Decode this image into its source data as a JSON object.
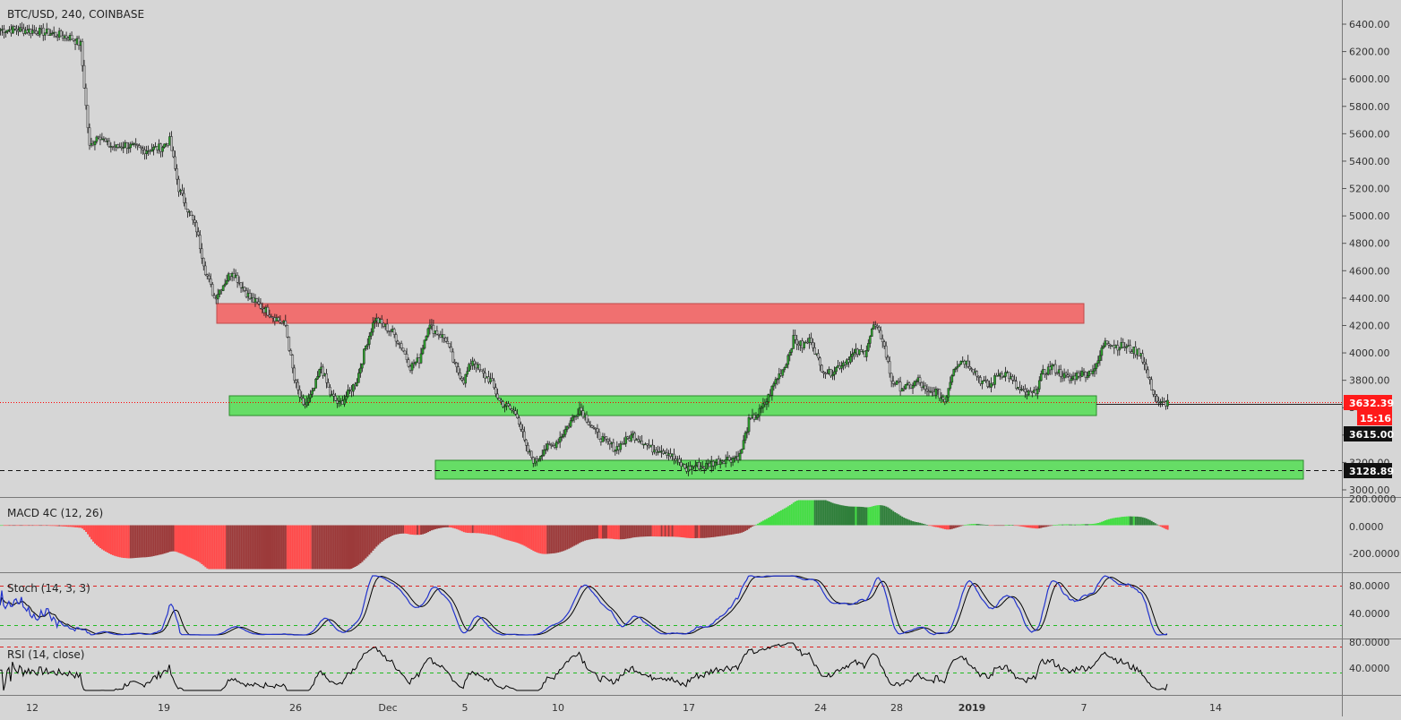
{
  "header": {
    "title": "BTC/USD, 240, COINBASE"
  },
  "colors": {
    "background": "#d6d6d6",
    "up_candle": "#2e9e2e",
    "down_candle": "#c0c0c0",
    "resistance_zone": "#f07070",
    "support_zone": "#66dd66",
    "current_price_line": "#ff0000",
    "macd_pos_strong": "#44dd44",
    "macd_pos_weak": "#2f7f3a",
    "macd_neg_strong": "#ff4a4a",
    "macd_neg_weak": "#9c3a3a",
    "stoch_k": "#2233cc",
    "stoch_d": "#000000",
    "rsi_line": "#000000",
    "level_upper": "#dd2222",
    "level_lower": "#22bb22"
  },
  "price_axis": {
    "ticks": [
      "6400.00",
      "6200.00",
      "6000.00",
      "5800.00",
      "5600.00",
      "5400.00",
      "5200.00",
      "5000.00",
      "4800.00",
      "4600.00",
      "4400.00",
      "4200.00",
      "4000.00",
      "3800.00",
      "3600.00",
      "3400.00",
      "3200.00",
      "3000.00"
    ],
    "current_price": "3632.39",
    "countdown": "15:16",
    "level_a": "3615.00",
    "level_b": "3128.89"
  },
  "time_axis": {
    "labels": [
      "12",
      "19",
      "26",
      "Dec",
      "5",
      "10",
      "17",
      "24",
      "28",
      "2019",
      "7",
      "14"
    ]
  },
  "macd": {
    "title": "MACD 4C (12, 26)",
    "ticks": [
      "200.0000",
      "0.0000",
      "-200.0000"
    ]
  },
  "stoch": {
    "title": "Stoch (14, 3, 3)",
    "ticks": [
      "80.0000",
      "40.0000"
    ]
  },
  "rsi": {
    "title": "RSI (14, close)",
    "ticks": [
      "80.0000",
      "40.0000"
    ]
  },
  "chart_data": {
    "type": "candlestick",
    "symbol": "BTC/USD",
    "interval": "240",
    "exchange": "COINBASE",
    "y_range": [
      2960,
      6460
    ],
    "dates": [
      "Nov 12",
      "Nov 19",
      "Nov 26",
      "Dec",
      "Dec 5",
      "Dec 10",
      "Dec 17",
      "Dec 24",
      "Dec 28",
      "2019",
      "Jan 7",
      "Jan 14"
    ],
    "close_path": [
      [
        0,
        6360
      ],
      [
        10,
        6360
      ],
      [
        20,
        6350
      ],
      [
        30,
        6330
      ],
      [
        40,
        6300
      ],
      [
        45,
        6250
      ],
      [
        50,
        5500
      ],
      [
        55,
        5600
      ],
      [
        60,
        5520
      ],
      [
        65,
        5500
      ],
      [
        70,
        5520
      ],
      [
        80,
        5480
      ],
      [
        90,
        5500
      ],
      [
        95,
        5550
      ],
      [
        100,
        5200
      ],
      [
        110,
        4900
      ],
      [
        115,
        4600
      ],
      [
        120,
        4400
      ],
      [
        125,
        4500
      ],
      [
        130,
        4600
      ],
      [
        140,
        4400
      ],
      [
        150,
        4300
      ],
      [
        160,
        4200
      ],
      [
        165,
        3800
      ],
      [
        170,
        3600
      ],
      [
        175,
        3700
      ],
      [
        180,
        3900
      ],
      [
        185,
        3700
      ],
      [
        190,
        3620
      ],
      [
        195,
        3700
      ],
      [
        200,
        3800
      ],
      [
        205,
        4050
      ],
      [
        210,
        4250
      ],
      [
        215,
        4200
      ],
      [
        220,
        4150
      ],
      [
        225,
        4050
      ],
      [
        230,
        3900
      ],
      [
        235,
        3950
      ],
      [
        240,
        4200
      ],
      [
        245,
        4150
      ],
      [
        250,
        4100
      ],
      [
        255,
        3900
      ],
      [
        260,
        3800
      ],
      [
        265,
        3950
      ],
      [
        270,
        3850
      ],
      [
        275,
        3800
      ],
      [
        280,
        3650
      ],
      [
        285,
        3600
      ],
      [
        290,
        3550
      ],
      [
        295,
        3300
      ],
      [
        300,
        3200
      ],
      [
        305,
        3300
      ],
      [
        310,
        3320
      ],
      [
        315,
        3400
      ],
      [
        320,
        3500
      ],
      [
        325,
        3600
      ],
      [
        330,
        3500
      ],
      [
        335,
        3400
      ],
      [
        340,
        3350
      ],
      [
        345,
        3300
      ],
      [
        350,
        3350
      ],
      [
        355,
        3400
      ],
      [
        360,
        3360
      ],
      [
        365,
        3300
      ],
      [
        370,
        3300
      ],
      [
        375,
        3270
      ],
      [
        380,
        3200
      ],
      [
        385,
        3150
      ],
      [
        390,
        3180
      ],
      [
        395,
        3170
      ],
      [
        400,
        3200
      ],
      [
        405,
        3220
      ],
      [
        410,
        3230
      ],
      [
        415,
        3250
      ],
      [
        420,
        3500
      ],
      [
        425,
        3550
      ],
      [
        430,
        3650
      ],
      [
        435,
        3800
      ],
      [
        440,
        3900
      ],
      [
        445,
        4100
      ],
      [
        450,
        4050
      ],
      [
        455,
        4100
      ],
      [
        460,
        3900
      ],
      [
        465,
        3850
      ],
      [
        470,
        3900
      ],
      [
        475,
        3950
      ],
      [
        480,
        4000
      ],
      [
        485,
        4000
      ],
      [
        490,
        4200
      ],
      [
        495,
        4100
      ],
      [
        500,
        3800
      ],
      [
        505,
        3750
      ],
      [
        510,
        3750
      ],
      [
        515,
        3800
      ],
      [
        520,
        3700
      ],
      [
        525,
        3720
      ],
      [
        530,
        3650
      ],
      [
        535,
        3900
      ],
      [
        540,
        3950
      ],
      [
        545,
        3900
      ],
      [
        550,
        3800
      ],
      [
        555,
        3750
      ],
      [
        560,
        3850
      ],
      [
        565,
        3850
      ],
      [
        570,
        3750
      ],
      [
        575,
        3700
      ],
      [
        580,
        3700
      ],
      [
        585,
        3850
      ],
      [
        590,
        3900
      ],
      [
        595,
        3850
      ],
      [
        600,
        3800
      ],
      [
        605,
        3850
      ],
      [
        610,
        3850
      ],
      [
        615,
        3900
      ],
      [
        620,
        4100
      ],
      [
        625,
        4050
      ],
      [
        630,
        4050
      ],
      [
        635,
        4020
      ],
      [
        640,
        4000
      ],
      [
        645,
        3780
      ],
      [
        650,
        3620
      ],
      [
        655,
        3640
      ]
    ],
    "zones": [
      {
        "kind": "resistance",
        "from": "Nov 23",
        "to": "Jan 7",
        "low": 4220,
        "high": 4360
      },
      {
        "kind": "support",
        "from": "Nov 24",
        "to": "Jan 7",
        "low": 3530,
        "high": 3680
      },
      {
        "kind": "support",
        "from": "Dec 3",
        "to": "Jan 16",
        "low": 3070,
        "high": 3210
      }
    ],
    "last_price": 3632.39,
    "horizontal_levels": [
      3615.0,
      3128.89
    ],
    "indicators": {
      "macd": {
        "params": [
          12,
          26
        ],
        "range": [
          -310,
          210
        ]
      },
      "stoch": {
        "params": [
          14,
          3,
          3
        ],
        "upper": 80,
        "lower": 20
      },
      "rsi": {
        "params": [
          14
        ],
        "upper": 70,
        "lower": 30
      }
    }
  }
}
